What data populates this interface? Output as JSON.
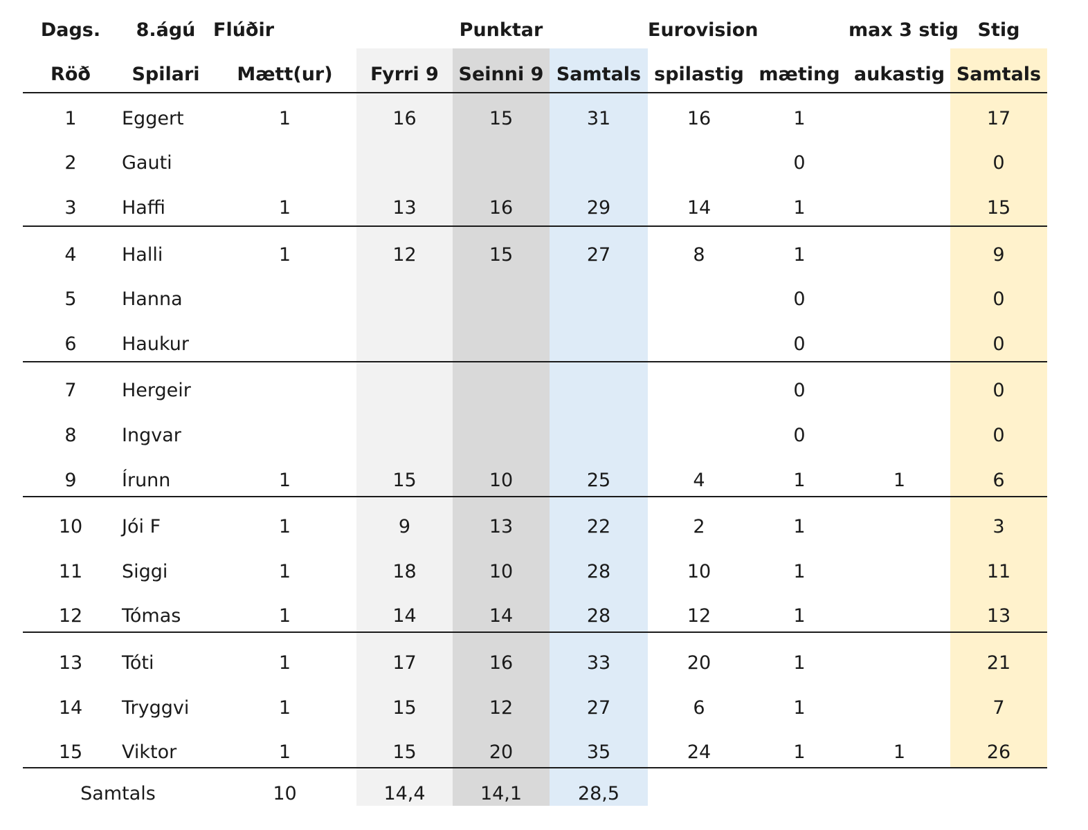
{
  "header_row1": {
    "dags": "Dags.",
    "date": "8.ágú",
    "location": "Flúðir",
    "punktar": "Punktar",
    "eurovision": "Eurovision",
    "max3": "max 3 stig",
    "stig": "Stig"
  },
  "header_row2": {
    "rod": "Röð",
    "spilari": "Spilari",
    "maett": "Mætt(ur)",
    "fyrri9": "Fyrri 9",
    "seinni9": "Seinni 9",
    "samtals": "Samtals",
    "spilastig": "spilastig",
    "maeting": "mæting",
    "aukastig": "aukastig",
    "stig_samtals": "Samtals"
  },
  "colors": {
    "fyrri_band": "#f2f2f2",
    "seinni_band": "#d9d9d9",
    "samtals_band": "#deebf7",
    "stig_band": "#fff2cc"
  },
  "rows": [
    {
      "rod": "1",
      "name": "Eggert",
      "maett": "1",
      "fyrri": "16",
      "seinni": "15",
      "samtals": "31",
      "spilastig": "16",
      "maeting": "1",
      "aukastig": "",
      "stig": "17"
    },
    {
      "rod": "2",
      "name": "Gauti",
      "maett": "",
      "fyrri": "",
      "seinni": "",
      "samtals": "",
      "spilastig": "",
      "maeting": "0",
      "aukastig": "",
      "stig": "0"
    },
    {
      "rod": "3",
      "name": "Haffi",
      "maett": "1",
      "fyrri": "13",
      "seinni": "16",
      "samtals": "29",
      "spilastig": "14",
      "maeting": "1",
      "aukastig": "",
      "stig": "15"
    },
    {
      "rod": "4",
      "name": "Halli",
      "maett": "1",
      "fyrri": "12",
      "seinni": "15",
      "samtals": "27",
      "spilastig": "8",
      "maeting": "1",
      "aukastig": "",
      "stig": "9"
    },
    {
      "rod": "5",
      "name": "Hanna",
      "maett": "",
      "fyrri": "",
      "seinni": "",
      "samtals": "",
      "spilastig": "",
      "maeting": "0",
      "aukastig": "",
      "stig": "0"
    },
    {
      "rod": "6",
      "name": "Haukur",
      "maett": "",
      "fyrri": "",
      "seinni": "",
      "samtals": "",
      "spilastig": "",
      "maeting": "0",
      "aukastig": "",
      "stig": "0"
    },
    {
      "rod": "7",
      "name": "Hergeir",
      "maett": "",
      "fyrri": "",
      "seinni": "",
      "samtals": "",
      "spilastig": "",
      "maeting": "0",
      "aukastig": "",
      "stig": "0"
    },
    {
      "rod": "8",
      "name": "Ingvar",
      "maett": "",
      "fyrri": "",
      "seinni": "",
      "samtals": "",
      "spilastig": "",
      "maeting": "0",
      "aukastig": "",
      "stig": "0"
    },
    {
      "rod": "9",
      "name": "Írunn",
      "maett": "1",
      "fyrri": "15",
      "seinni": "10",
      "samtals": "25",
      "spilastig": "4",
      "maeting": "1",
      "aukastig": "1",
      "stig": "6"
    },
    {
      "rod": "10",
      "name": "Jói F",
      "maett": "1",
      "fyrri": "9",
      "seinni": "13",
      "samtals": "22",
      "spilastig": "2",
      "maeting": "1",
      "aukastig": "",
      "stig": "3"
    },
    {
      "rod": "11",
      "name": "Siggi",
      "maett": "1",
      "fyrri": "18",
      "seinni": "10",
      "samtals": "28",
      "spilastig": "10",
      "maeting": "1",
      "aukastig": "",
      "stig": "11"
    },
    {
      "rod": "12",
      "name": "Tómas",
      "maett": "1",
      "fyrri": "14",
      "seinni": "14",
      "samtals": "28",
      "spilastig": "12",
      "maeting": "1",
      "aukastig": "",
      "stig": "13"
    },
    {
      "rod": "13",
      "name": "Tóti",
      "maett": "1",
      "fyrri": "17",
      "seinni": "16",
      "samtals": "33",
      "spilastig": "20",
      "maeting": "1",
      "aukastig": "",
      "stig": "21"
    },
    {
      "rod": "14",
      "name": "Tryggvi",
      "maett": "1",
      "fyrri": "15",
      "seinni": "12",
      "samtals": "27",
      "spilastig": "6",
      "maeting": "1",
      "aukastig": "",
      "stig": "7"
    },
    {
      "rod": "15",
      "name": "Viktor",
      "maett": "1",
      "fyrri": "15",
      "seinni": "20",
      "samtals": "35",
      "spilastig": "24",
      "maeting": "1",
      "aukastig": "1",
      "stig": "26"
    }
  ],
  "totals": {
    "label": "Samtals",
    "maett": "10",
    "fyrri": "14,4",
    "seinni": "14,1",
    "samtals": "28,5"
  }
}
